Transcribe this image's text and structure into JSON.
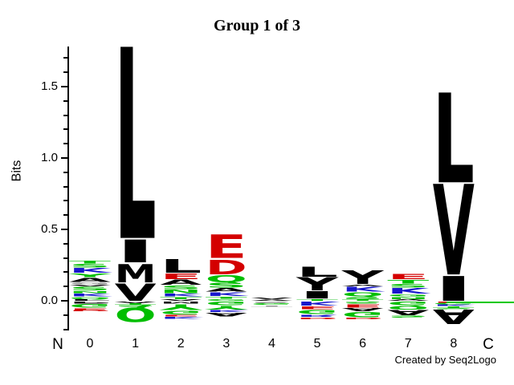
{
  "title": "Group 1 of 3",
  "credit": "Created by Seq2Logo",
  "colors": {
    "hydrophobic": "#000000",
    "polar": "#00BE00",
    "basic": "#1818CC",
    "acidic": "#D40000",
    "misc": "#909090",
    "axis": "#000000",
    "artifact_line": "#00C800"
  },
  "y_axis": {
    "label": "Bits",
    "major_ticks": [
      {
        "value": 0.0,
        "label": "0.0"
      },
      {
        "value": 0.5,
        "label": "0.5"
      },
      {
        "value": 1.0,
        "label": "1.0"
      },
      {
        "value": 1.5,
        "label": "1.5"
      }
    ],
    "minor_tick_values": [
      -0.2,
      -0.1,
      0.1,
      0.2,
      0.3,
      0.4,
      0.6,
      0.7,
      0.8,
      0.9,
      1.1,
      1.2,
      1.3,
      1.4,
      1.6,
      1.7
    ],
    "range_bits": [
      -0.21,
      1.79
    ]
  },
  "x_axis": {
    "n_terminus": "N",
    "c_terminus": "C",
    "position_labels": [
      "0",
      "1",
      "2",
      "3",
      "4",
      "5",
      "6",
      "7",
      "8"
    ]
  },
  "chart_data": {
    "type": "sequence_logo",
    "unit": "bits",
    "title": "Group 1 of 3",
    "ylabel": "Bits",
    "ylim": [
      -0.21,
      1.79
    ],
    "note": "letter stacks listed top-to-bottom; 'above' is positive bits, 'below' is negative (drawn inverted); entry = [residue, colorKey, bits]",
    "positions": [
      {
        "label": "0",
        "above": [
          [
            "T",
            "polar",
            0.022
          ],
          [
            "S",
            "polar",
            0.028
          ],
          [
            "K",
            "basic",
            0.038
          ],
          [
            "Y",
            "polar",
            0.03
          ],
          [
            "A",
            "hydrophobic",
            0.034
          ],
          [
            "G",
            "misc",
            0.018
          ],
          [
            "V",
            "hydrophobic",
            0.014
          ],
          [
            "S",
            "polar",
            0.028
          ],
          [
            "N",
            "polar",
            0.018
          ],
          [
            "K",
            "basic",
            0.024
          ],
          [
            "Q",
            "polar",
            0.018
          ],
          [
            "L",
            "hydrophobic",
            0.012
          ]
        ],
        "below": [
          [
            "P",
            "hydrophobic",
            0.018
          ],
          [
            "G",
            "polar",
            0.03
          ],
          [
            "E",
            "acidic",
            0.012
          ],
          [
            "D",
            "acidic",
            0.01
          ]
        ]
      },
      {
        "label": "1",
        "above": [
          [
            "L",
            "hydrophobic",
            1.35
          ],
          [
            "I",
            "hydrophobic",
            0.17
          ],
          [
            "M",
            "hydrophobic",
            0.14
          ],
          [
            "V",
            "hydrophobic",
            0.13
          ]
        ],
        "below": [
          [
            "A",
            "hydrophobic",
            0.012
          ],
          [
            "T",
            "polar",
            0.014
          ],
          [
            "S",
            "polar",
            0.016
          ],
          [
            "Q",
            "polar",
            0.115
          ]
        ]
      },
      {
        "label": "2",
        "above": [
          [
            "L",
            "hydrophobic",
            0.1
          ],
          [
            "E",
            "acidic",
            0.046
          ],
          [
            "A",
            "hydrophobic",
            0.04
          ],
          [
            "S",
            "polar",
            0.03
          ],
          [
            "N",
            "polar",
            0.028
          ],
          [
            "K",
            "basic",
            0.022
          ],
          [
            "T",
            "polar",
            0.02
          ],
          [
            "V",
            "hydrophobic",
            0.012
          ]
        ],
        "below": [
          [
            "M",
            "hydrophobic",
            0.02
          ],
          [
            "Y",
            "polar",
            0.044
          ],
          [
            "G",
            "polar",
            0.03
          ],
          [
            "E",
            "acidic",
            0.014
          ],
          [
            "K",
            "basic",
            0.02
          ]
        ]
      },
      {
        "label": "3",
        "above": [
          [
            "E",
            "acidic",
            0.175
          ],
          [
            "D",
            "acidic",
            0.115
          ],
          [
            "Q",
            "polar",
            0.056
          ],
          [
            "S",
            "polar",
            0.036
          ],
          [
            "A",
            "hydrophobic",
            0.03
          ],
          [
            "K",
            "basic",
            0.03
          ],
          [
            "T",
            "polar",
            0.02
          ],
          [
            "G",
            "polar",
            0.014
          ]
        ],
        "below": [
          [
            "G",
            "polar",
            0.03
          ],
          [
            "Y",
            "polar",
            0.03
          ],
          [
            "K",
            "basic",
            0.02
          ],
          [
            "A",
            "hydrophobic",
            0.03
          ]
        ]
      },
      {
        "label": "4",
        "above": [
          [
            "V",
            "hydrophobic",
            0.014
          ],
          [
            "A",
            "hydrophobic",
            0.01
          ]
        ],
        "below": [
          [
            "S",
            "misc",
            0.012
          ],
          [
            "G",
            "polar",
            0.016
          ],
          [
            "T",
            "misc",
            0.01
          ]
        ]
      },
      {
        "label": "5",
        "above": [
          [
            "L",
            "hydrophobic",
            0.072
          ],
          [
            "Y",
            "hydrophobic",
            0.096
          ],
          [
            "I",
            "hydrophobic",
            0.056
          ],
          [
            "T",
            "polar",
            0.016
          ]
        ],
        "below": [
          [
            "K",
            "basic",
            0.034
          ],
          [
            "E",
            "acidic",
            0.024
          ],
          [
            "G",
            "polar",
            0.034
          ],
          [
            "R",
            "basic",
            0.02
          ],
          [
            "D",
            "acidic",
            0.014
          ]
        ]
      },
      {
        "label": "6",
        "above": [
          [
            "Y",
            "hydrophobic",
            0.1
          ],
          [
            "A",
            "hydrophobic",
            0.016
          ],
          [
            "K",
            "basic",
            0.036
          ],
          [
            "Q",
            "polar",
            0.034
          ],
          [
            "S",
            "polar",
            0.02
          ],
          [
            "T",
            "polar",
            0.012
          ]
        ],
        "below": [
          [
            "S",
            "polar",
            0.02
          ],
          [
            "E",
            "acidic",
            0.026
          ],
          [
            "A",
            "hydrophobic",
            0.026
          ],
          [
            "G",
            "polar",
            0.04
          ],
          [
            "D",
            "acidic",
            0.012
          ]
        ]
      },
      {
        "label": "7",
        "above": [
          [
            "E",
            "acidic",
            0.04
          ],
          [
            "T",
            "polar",
            0.03
          ],
          [
            "S",
            "polar",
            0.028
          ],
          [
            "K",
            "basic",
            0.044
          ],
          [
            "G",
            "polar",
            0.02
          ],
          [
            "N",
            "polar",
            0.018
          ],
          [
            "A",
            "hydrophobic",
            0.012
          ]
        ],
        "below": [
          [
            "G",
            "polar",
            0.03
          ],
          [
            "Q",
            "polar",
            0.028
          ],
          [
            "A",
            "hydrophobic",
            0.04
          ],
          [
            "S",
            "polar",
            0.02
          ]
        ]
      },
      {
        "label": "8",
        "above": [
          [
            "L",
            "hydrophobic",
            0.64
          ],
          [
            "V",
            "hydrophobic",
            0.645
          ],
          [
            "I",
            "hydrophobic",
            0.185
          ]
        ],
        "below": [
          [
            "E",
            "acidic",
            0.008
          ],
          [
            "G",
            "polar",
            0.012
          ],
          [
            "K",
            "basic",
            0.014
          ],
          [
            "T",
            "polar",
            0.012
          ],
          [
            "S",
            "polar",
            0.01
          ],
          [
            "A",
            "hydrophobic",
            0.108
          ]
        ]
      }
    ],
    "artifact": {
      "description": "thin green horizontal line just below the zero line extending from position 8 to the right edge"
    }
  }
}
